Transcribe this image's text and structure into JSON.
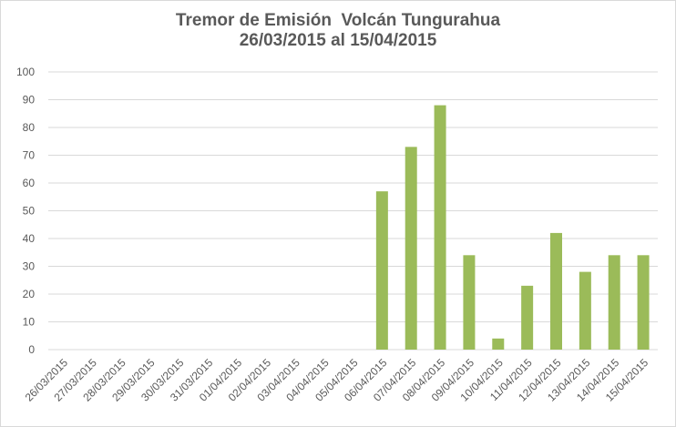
{
  "chart_data": {
    "type": "bar",
    "title": "Tremor de Emisión  Volcán Tungurahua",
    "subtitle": "26/03/2015 al 15/04/2015",
    "xlabel": "",
    "ylabel": "",
    "ylim": [
      0,
      100
    ],
    "yticks": [
      "0",
      "10",
      "20",
      "30",
      "40",
      "50",
      "60",
      "70",
      "80",
      "90",
      "100"
    ],
    "categories": [
      "26/03/2015",
      "27/03/2015",
      "28/03/2015",
      "29/03/2015",
      "30/03/2015",
      "31/03/2015",
      "01/04/2015",
      "02/04/2015",
      "03/04/2015",
      "04/04/2015",
      "05/04/2015",
      "06/04/2015",
      "07/04/2015",
      "08/04/2015",
      "09/04/2015",
      "10/04/2015",
      "11/04/2015",
      "12/04/2015",
      "13/04/2015",
      "14/04/2015",
      "15/04/2015"
    ],
    "values": [
      0,
      0,
      0,
      0,
      0,
      0,
      0,
      0,
      0,
      0,
      0,
      57,
      73,
      88,
      34,
      4,
      23,
      42,
      28,
      34,
      34
    ],
    "grid": true,
    "legend": "none",
    "colors": {
      "bar": "#9bbb59",
      "grid": "#d9d9d9",
      "text": "#595959"
    }
  }
}
